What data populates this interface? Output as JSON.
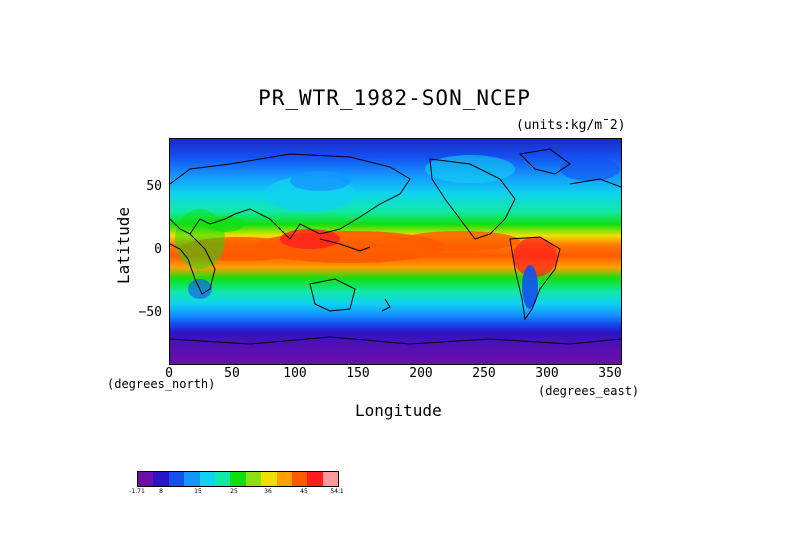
{
  "title": "PR_WTR_1982-SON_NCEP",
  "units": "(units:kg/m¯2)",
  "axes": {
    "ylabel": "Latitude",
    "xlabel": "Longitude",
    "y_units": "(degrees_north)",
    "x_units": "(degrees_east)",
    "y_ticks": [
      "50",
      "0",
      "−50"
    ],
    "x_ticks": [
      "0",
      "50",
      "100",
      "150",
      "200",
      "250",
      "300",
      "350"
    ]
  },
  "colorbar": {
    "colors": [
      "#6a0fa8",
      "#2a14c8",
      "#1450f0",
      "#1496ff",
      "#10d2f0",
      "#10e8aa",
      "#10e010",
      "#8ce010",
      "#f0e000",
      "#ffa000",
      "#ff5a00",
      "#ff1e1e",
      "#ff9a9a"
    ],
    "labels": [
      "-1.71",
      "8",
      "15",
      "25",
      "36",
      "45",
      "54.1"
    ]
  }
}
